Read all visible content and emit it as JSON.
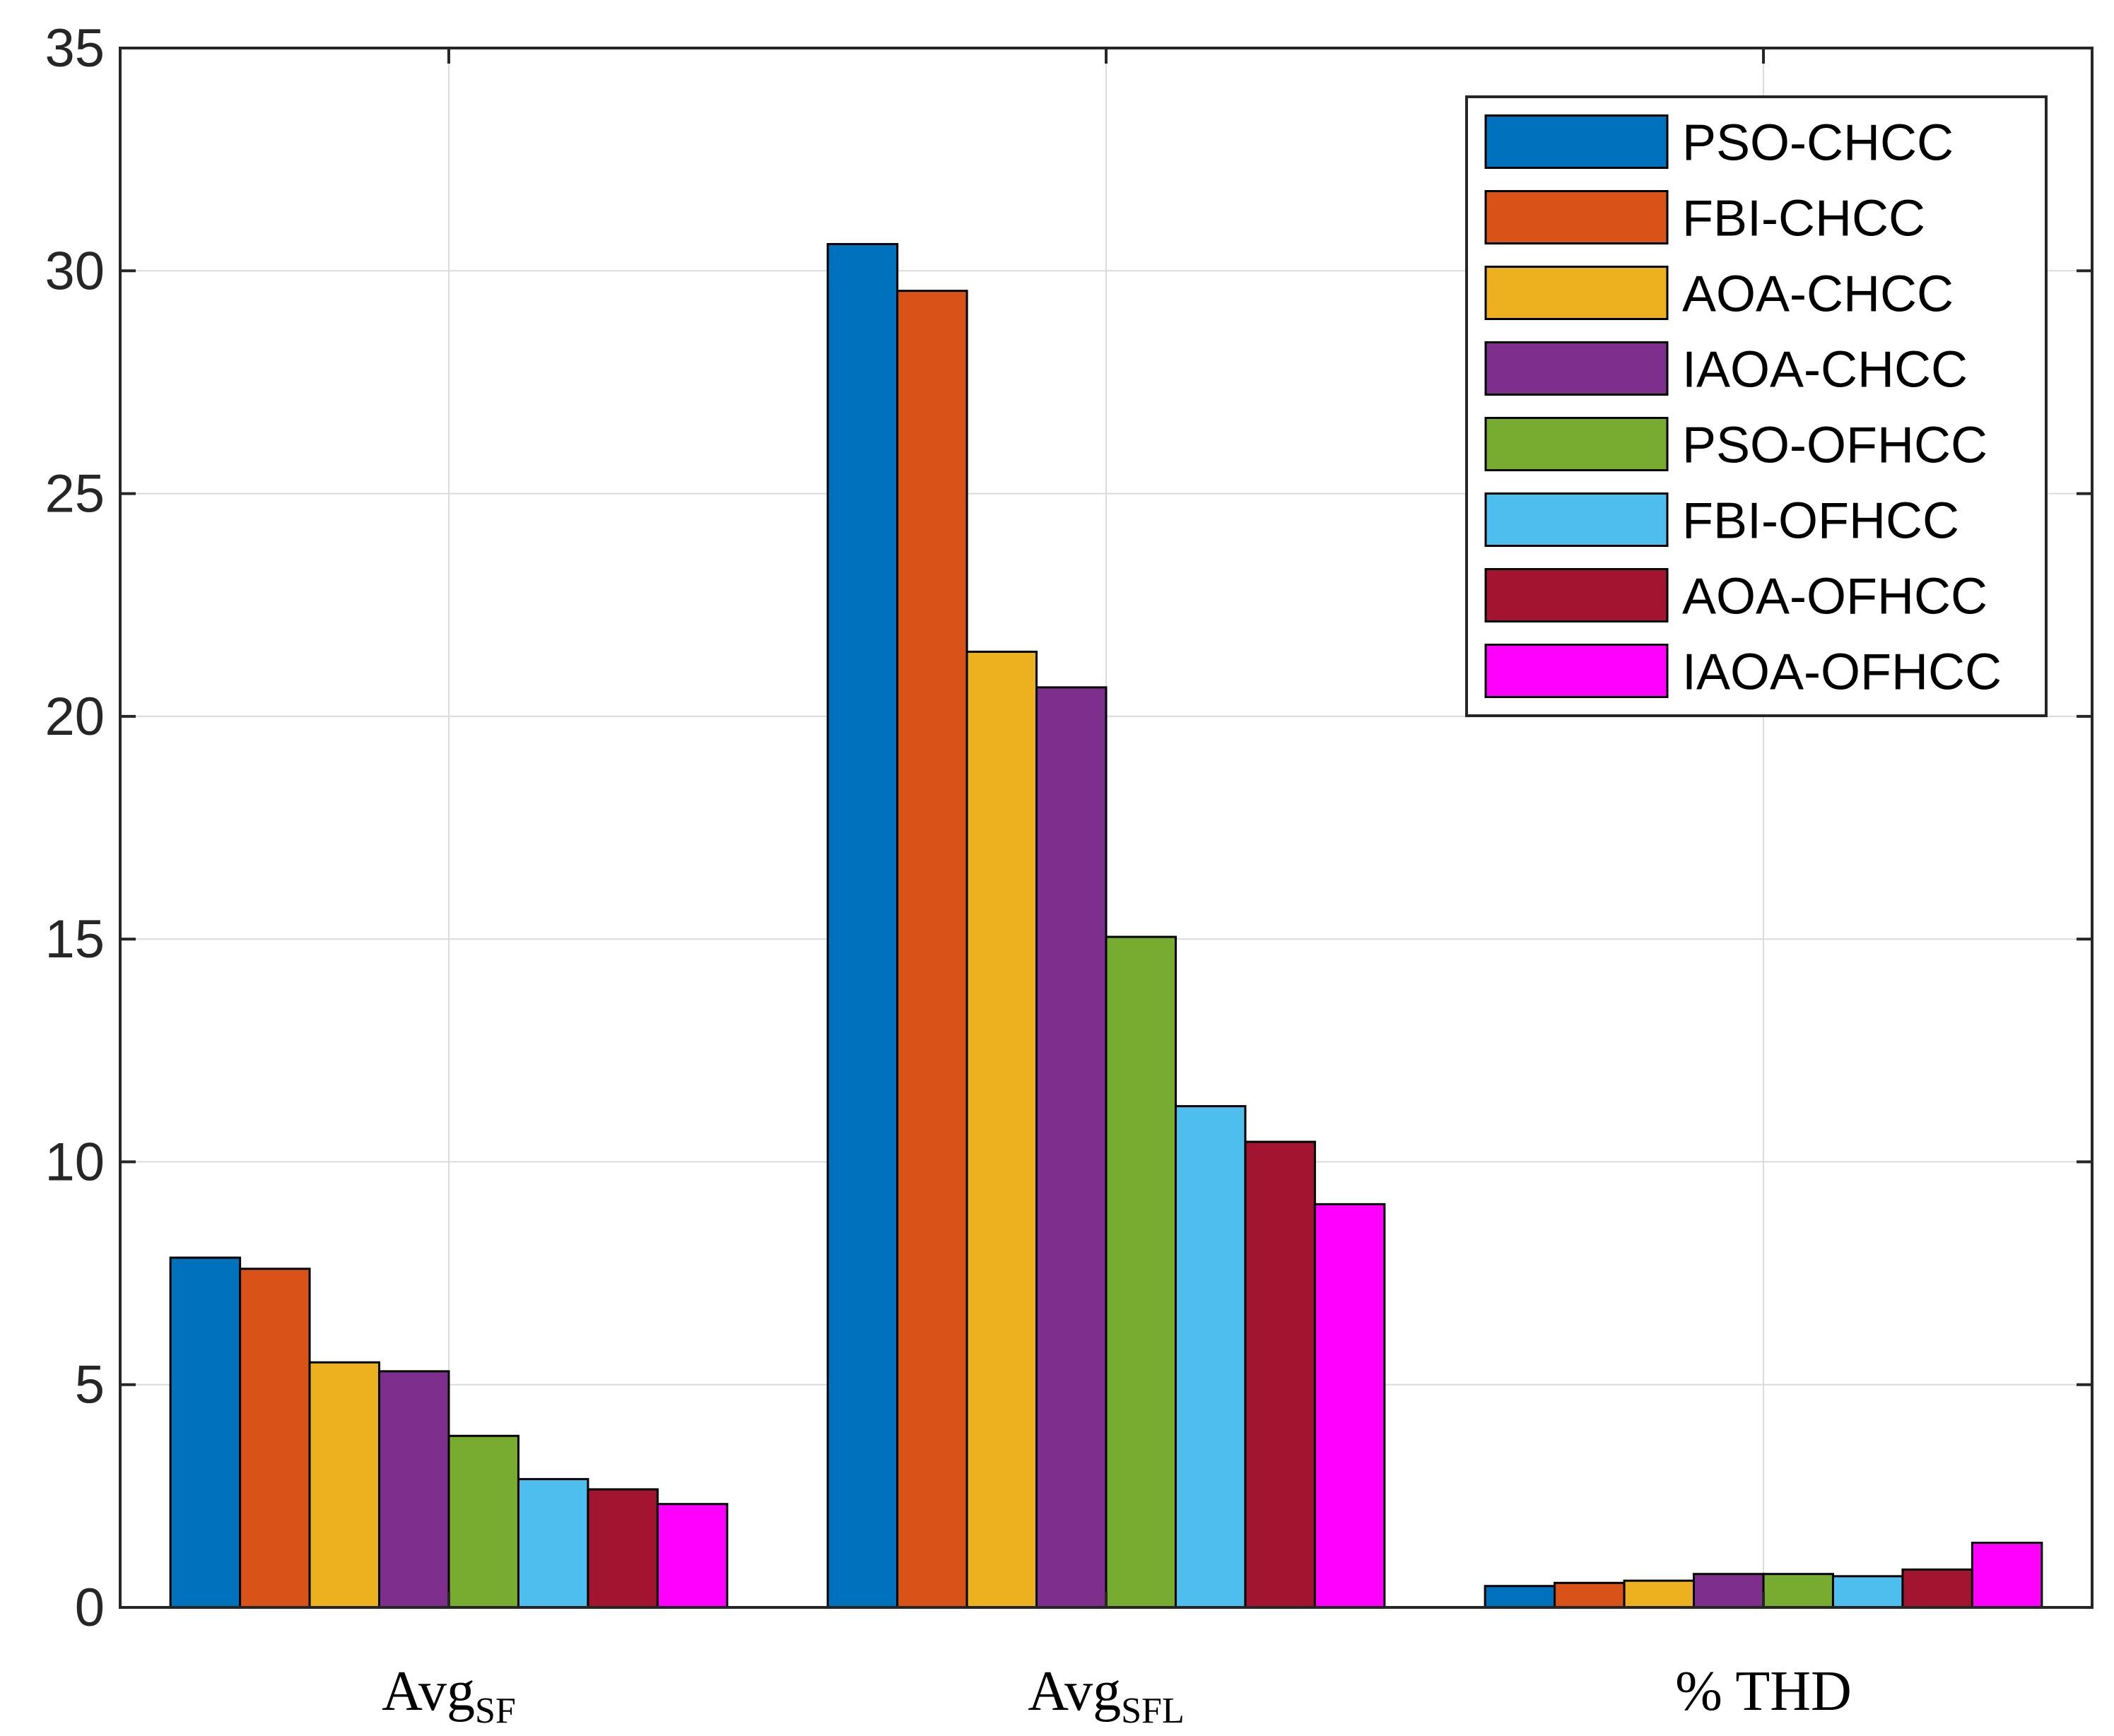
{
  "chart_data": {
    "type": "bar",
    "title": "",
    "xlabel": "",
    "ylabel": "",
    "ylim": [
      0,
      35
    ],
    "yticks": [
      0,
      5,
      10,
      15,
      20,
      25,
      30,
      35
    ],
    "grid": true,
    "legend_position": "top-right",
    "categories": [
      {
        "main": "Avg",
        "sub": "SF"
      },
      {
        "main": "Avg",
        "sub": "SFL"
      },
      {
        "main": "% THD",
        "sub": ""
      }
    ],
    "series": [
      {
        "name": "PSO-CHCC",
        "color": "#0072BD",
        "values": [
          7.85,
          30.6,
          0.48
        ]
      },
      {
        "name": "FBI-CHCC",
        "color": "#D95319",
        "values": [
          7.6,
          29.55,
          0.55
        ]
      },
      {
        "name": "AOA-CHCC",
        "color": "#EDB120",
        "values": [
          5.5,
          21.45,
          0.6
        ]
      },
      {
        "name": "IAOA-CHCC",
        "color": "#7E2F8E",
        "values": [
          5.3,
          20.65,
          0.75
        ]
      },
      {
        "name": "PSO-OFHCC",
        "color": "#77AC30",
        "values": [
          3.85,
          15.05,
          0.75
        ]
      },
      {
        "name": "FBI-OFHCC",
        "color": "#4DBEEE",
        "values": [
          2.88,
          11.25,
          0.7
        ]
      },
      {
        "name": "AOA-OFHCC",
        "color": "#A2142F",
        "values": [
          2.65,
          10.45,
          0.85
        ]
      },
      {
        "name": "IAOA-OFHCC",
        "color": "#FF00FF",
        "values": [
          2.32,
          9.05,
          1.45
        ]
      }
    ]
  }
}
